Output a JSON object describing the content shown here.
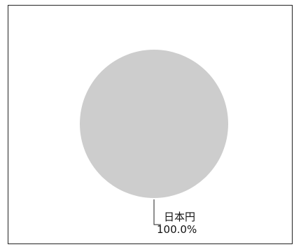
{
  "chart_data": {
    "type": "pie",
    "categories": [
      "日本円"
    ],
    "values": [
      100.0
    ],
    "slice_labels": [
      {
        "name": "日本円",
        "value_text": "100.0%"
      }
    ],
    "colors": [
      "#cdcdcd"
    ],
    "title": "",
    "legend": "none"
  }
}
